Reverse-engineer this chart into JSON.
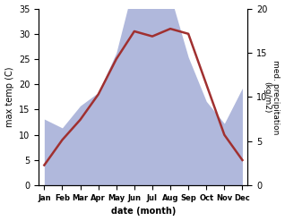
{
  "months": [
    "Jan",
    "Feb",
    "Mar",
    "Apr",
    "May",
    "Jun",
    "Jul",
    "Aug",
    "Sep",
    "Oct",
    "Nov",
    "Dec"
  ],
  "temperature": [
    4,
    9,
    13,
    18,
    25,
    30.5,
    29.5,
    31,
    30,
    20,
    10,
    5
  ],
  "precipitation": [
    7.5,
    6.5,
    9,
    10.5,
    15,
    23,
    20,
    21.5,
    14.5,
    9.5,
    7,
    11
  ],
  "temp_color": "#a03030",
  "precip_color": "#b0b8dc",
  "ylabel_left": "max temp (C)",
  "ylabel_right": "med. precipitation\n(kg/m2)",
  "xlabel": "date (month)",
  "ylim_left": [
    0,
    35
  ],
  "ylim_right": [
    0,
    20
  ],
  "left_ticks": [
    0,
    5,
    10,
    15,
    20,
    25,
    30,
    35
  ],
  "right_ticks": [
    0,
    5,
    10,
    15,
    20
  ],
  "scale_factor": 1.75,
  "background_color": "#ffffff",
  "temp_linewidth": 1.8
}
